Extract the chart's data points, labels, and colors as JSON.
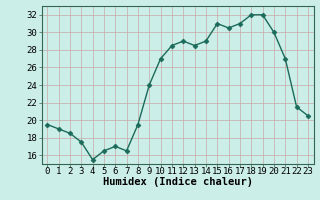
{
  "x": [
    0,
    1,
    2,
    3,
    4,
    5,
    6,
    7,
    8,
    9,
    10,
    11,
    12,
    13,
    14,
    15,
    16,
    17,
    18,
    19,
    20,
    21,
    22,
    23
  ],
  "y": [
    19.5,
    19.0,
    18.5,
    17.5,
    15.5,
    16.5,
    17.0,
    16.5,
    19.5,
    24.0,
    27.0,
    28.5,
    29.0,
    28.5,
    29.0,
    31.0,
    30.5,
    31.0,
    32.0,
    32.0,
    30.0,
    27.0,
    21.5,
    20.5
  ],
  "line_color": "#1a6b5a",
  "marker": "D",
  "marker_size": 2.5,
  "bg_color": "#cceee8",
  "grid_color": "#c8a8a8",
  "xlabel": "Humidex (Indice chaleur)",
  "ylim": [
    15,
    33
  ],
  "xlim": [
    -0.5,
    23.5
  ],
  "yticks": [
    16,
    18,
    20,
    22,
    24,
    26,
    28,
    30,
    32
  ],
  "xticks": [
    0,
    1,
    2,
    3,
    4,
    5,
    6,
    7,
    8,
    9,
    10,
    11,
    12,
    13,
    14,
    15,
    16,
    17,
    18,
    19,
    20,
    21,
    22,
    23
  ],
  "xtick_labels": [
    "0",
    "1",
    "2",
    "3",
    "4",
    "5",
    "6",
    "7",
    "8",
    "9",
    "10",
    "11",
    "12",
    "13",
    "14",
    "15",
    "16",
    "17",
    "18",
    "19",
    "20",
    "21",
    "22",
    "23"
  ],
  "font_size_xlabel": 7.5,
  "font_size_ticks": 6.5,
  "line_width": 1.0
}
